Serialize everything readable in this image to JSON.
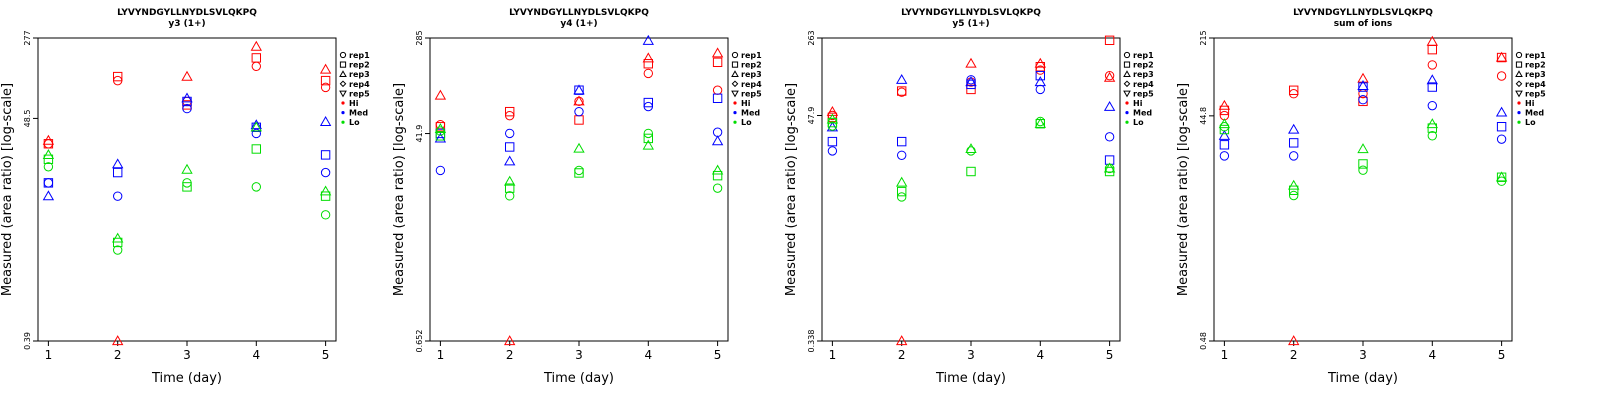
{
  "chart_data": [
    {
      "type": "scatter",
      "title": "LYVYNDGYLLNYDLSVLQKPQ",
      "subtitle": "y3 (1+)",
      "xlabel": "Time (day)",
      "ylabel": "Measured (area ratio) [log-scale]",
      "y_scale": "log",
      "ylim": [
        0.39,
        277
      ],
      "yticks": [
        "277",
        "48.5",
        "0.39"
      ],
      "x": [
        1,
        2,
        3,
        4,
        5
      ],
      "legend_position": "right",
      "groups": [
        {
          "name": "Hi",
          "color": "#ff0000",
          "series": [
            {
              "rep": "rep1",
              "values": [
                28,
                110,
                70,
                150,
                95
              ]
            },
            {
              "rep": "rep2",
              "values": [
                28,
                120,
                65,
                180,
                110
              ]
            },
            {
              "rep": "rep3",
              "values": [
                30,
                0.39,
                120,
                230,
                140
              ]
            }
          ]
        },
        {
          "name": "Med",
          "color": "#0000ff",
          "series": [
            {
              "rep": "rep1",
              "values": [
                12,
                9,
                60,
                35,
                15
              ]
            },
            {
              "rep": "rep2",
              "values": [
                12,
                15,
                70,
                40,
                22
              ]
            },
            {
              "rep": "rep3",
              "values": [
                9,
                18,
                75,
                42,
                45
              ]
            }
          ]
        },
        {
          "name": "Lo",
          "color": "#00dd00",
          "series": [
            {
              "rep": "rep1",
              "values": [
                17,
                2.8,
                12,
                11,
                6
              ]
            },
            {
              "rep": "rep2",
              "values": [
                20,
                3.3,
                11,
                25,
                9
              ]
            },
            {
              "rep": "rep3",
              "values": [
                22,
                3.6,
                16,
                40,
                10
              ]
            }
          ]
        }
      ]
    },
    {
      "type": "scatter",
      "title": "LYVYNDGYLLNYDLSVLQKPQ",
      "subtitle": "y4 (1+)",
      "xlabel": "Time (day)",
      "ylabel": "Measured (area ratio) [log-scale]",
      "y_scale": "log",
      "ylim": [
        0.652,
        285
      ],
      "yticks": [
        "285",
        "41.9",
        "0.652"
      ],
      "x": [
        1,
        2,
        3,
        4,
        5
      ],
      "legend_position": "right",
      "groups": [
        {
          "name": "Hi",
          "color": "#ff0000",
          "series": [
            {
              "rep": "rep1",
              "values": [
                50,
                60,
                80,
                140,
                100
              ]
            },
            {
              "rep": "rep2",
              "values": [
                48,
                65,
                55,
                170,
                175
              ]
            },
            {
              "rep": "rep3",
              "values": [
                90,
                0.652,
                80,
                190,
                210
              ]
            }
          ]
        },
        {
          "name": "Med",
          "color": "#0000ff",
          "series": [
            {
              "rep": "rep1",
              "values": [
                20,
                42,
                65,
                72,
                43
              ]
            },
            {
              "rep": "rep2",
              "values": [
                42,
                32,
                100,
                78,
                85
              ]
            },
            {
              "rep": "rep3",
              "values": [
                38,
                24,
                100,
                270,
                36
              ]
            }
          ]
        },
        {
          "name": "Lo",
          "color": "#00dd00",
          "series": [
            {
              "rep": "rep1",
              "values": [
                44,
                12,
                20,
                42,
                14
              ]
            },
            {
              "rep": "rep2",
              "values": [
                40,
                14,
                19,
                38,
                18
              ]
            },
            {
              "rep": "rep3",
              "values": [
                46,
                16,
                31,
                33,
                20
              ]
            }
          ]
        }
      ]
    },
    {
      "type": "scatter",
      "title": "LYVYNDGYLLNYDLSVLQKPQ",
      "subtitle": "y5 (1+)",
      "xlabel": "Time (day)",
      "ylabel": "Measured (area ratio) [log-scale]",
      "y_scale": "log",
      "ylim": [
        0.338,
        263
      ],
      "yticks": [
        "263",
        "47.9",
        "0.338"
      ],
      "x": [
        1,
        2,
        3,
        4,
        5
      ],
      "legend_position": "right",
      "groups": [
        {
          "name": "Hi",
          "color": "#ff0000",
          "series": [
            {
              "rep": "rep1",
              "values": [
                48,
                80,
                100,
                130,
                115
              ]
            },
            {
              "rep": "rep2",
              "values": [
                46,
                82,
                85,
                140,
                250
              ]
            },
            {
              "rep": "rep3",
              "values": [
                52,
                0.338,
                150,
                150,
                110
              ]
            }
          ]
        },
        {
          "name": "Med",
          "color": "#0000ff",
          "series": [
            {
              "rep": "rep1",
              "values": [
                22,
                20,
                105,
                85,
                30
              ]
            },
            {
              "rep": "rep2",
              "values": [
                27,
                27,
                95,
                115,
                18
              ]
            },
            {
              "rep": "rep3",
              "values": [
                37,
                105,
                100,
                100,
                58
              ]
            }
          ]
        },
        {
          "name": "Lo",
          "color": "#00dd00",
          "series": [
            {
              "rep": "rep1",
              "values": [
                38,
                8,
                22,
                42,
                15
              ]
            },
            {
              "rep": "rep2",
              "values": [
                41,
                9,
                14,
                40,
                14
              ]
            },
            {
              "rep": "rep3",
              "values": [
                44,
                11,
                23,
                40,
                15
              ]
            }
          ]
        }
      ]
    },
    {
      "type": "scatter",
      "title": "LYVYNDGYLLNYDLSVLQKPQ",
      "subtitle": "sum of ions",
      "xlabel": "Time (day)",
      "ylabel": "Measured (area ratio) [log-scale]",
      "y_scale": "log",
      "ylim": [
        0.48,
        215
      ],
      "yticks": [
        "215",
        "44.8",
        "0.48"
      ],
      "x": [
        1,
        2,
        3,
        4,
        5
      ],
      "legend_position": "right",
      "groups": [
        {
          "name": "Hi",
          "color": "#ff0000",
          "series": [
            {
              "rep": "rep1",
              "values": [
                45,
                70,
                70,
                125,
                100
              ]
            },
            {
              "rep": "rep2",
              "values": [
                50,
                75,
                60,
                170,
                145
              ]
            },
            {
              "rep": "rep3",
              "values": [
                55,
                0.48,
                95,
                200,
                145
              ]
            }
          ]
        },
        {
          "name": "Med",
          "color": "#0000ff",
          "series": [
            {
              "rep": "rep1",
              "values": [
                20,
                20,
                62,
                55,
                28
              ]
            },
            {
              "rep": "rep2",
              "values": [
                25,
                26,
                80,
                80,
                36
              ]
            },
            {
              "rep": "rep3",
              "values": [
                30,
                34,
                82,
                92,
                48
              ]
            }
          ]
        },
        {
          "name": "Lo",
          "color": "#00dd00",
          "series": [
            {
              "rep": "rep1",
              "values": [
                36,
                9,
                15,
                30,
                12
              ]
            },
            {
              "rep": "rep2",
              "values": [
                34,
                10,
                17,
                35,
                13
              ]
            },
            {
              "rep": "rep3",
              "values": [
                38,
                11,
                23,
                38,
                13
              ]
            }
          ]
        }
      ]
    }
  ],
  "legend": {
    "shape_entries": [
      {
        "label": "rep1",
        "shape": "circle"
      },
      {
        "label": "rep2",
        "shape": "square"
      },
      {
        "label": "rep3",
        "shape": "triangle-up"
      },
      {
        "label": "rep4",
        "shape": "diamond"
      },
      {
        "label": "rep5",
        "shape": "triangle-down"
      }
    ],
    "color_entries": [
      {
        "label": "Hi",
        "color": "#ff0000"
      },
      {
        "label": "Med",
        "color": "#0000ff"
      },
      {
        "label": "Lo",
        "color": "#00dd00"
      }
    ]
  }
}
